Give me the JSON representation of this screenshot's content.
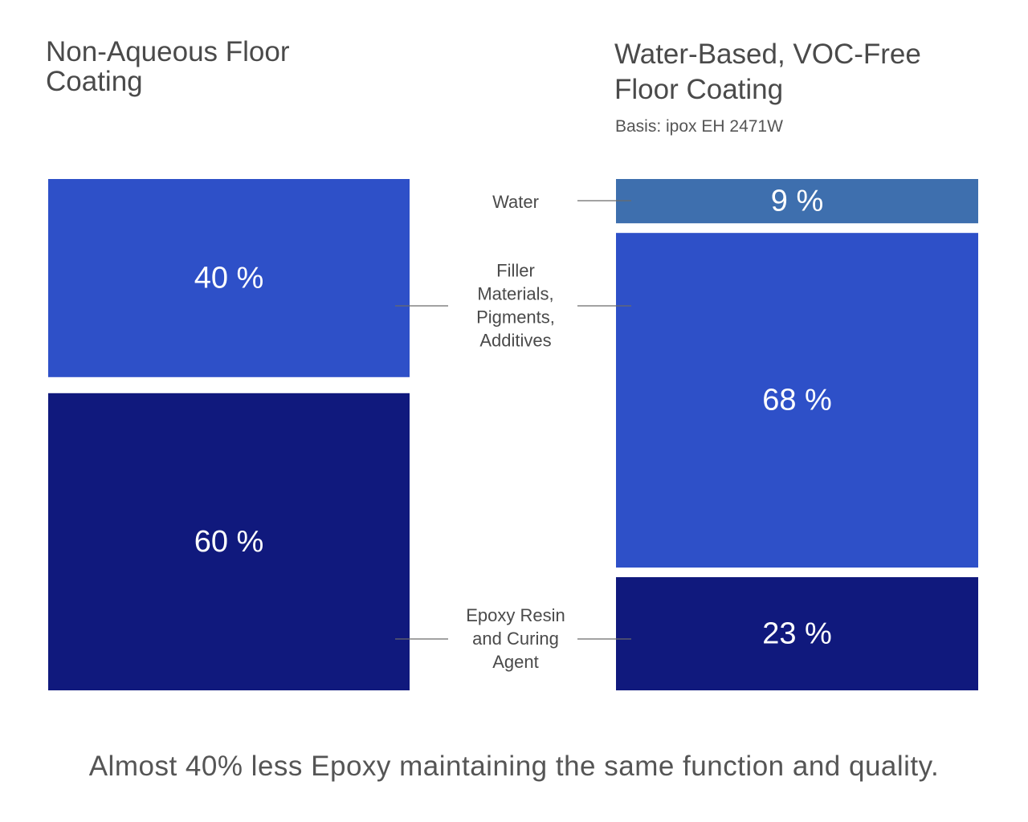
{
  "chart_data": {
    "type": "bar",
    "stacked": true,
    "normalized_to": 100,
    "unit": "%",
    "footnote": "Almost 40% less Epoxy maintaining the same function and quality.",
    "categories": [
      {
        "key": "water",
        "label": "Water",
        "color": "#3e6fae"
      },
      {
        "key": "filler",
        "label": "Filler\nMaterials,\nPigments,\nAdditives",
        "color": "#2e50c8"
      },
      {
        "key": "epoxy",
        "label": "Epoxy Resin\nand Curing\nAgent",
        "color": "#10197d"
      }
    ],
    "bars": [
      {
        "name": "Non-Aqueous Floor\nCoating",
        "subtitle": "",
        "segments": [
          {
            "category": "filler",
            "value": 40,
            "label": "40 %"
          },
          {
            "category": "epoxy",
            "value": 60,
            "label": "60 %"
          }
        ]
      },
      {
        "name": "Water-Based, VOC-Free\nFloor Coating",
        "subtitle": "Basis: ipox EH 2471W",
        "segments": [
          {
            "category": "water",
            "value": 9,
            "label": "9 %"
          },
          {
            "category": "filler",
            "value": 68,
            "label": "68 %"
          },
          {
            "category": "epoxy",
            "value": 23,
            "label": "23 %"
          }
        ]
      }
    ]
  }
}
